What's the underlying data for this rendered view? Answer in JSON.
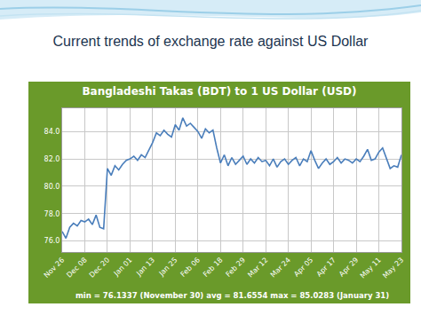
{
  "slide": {
    "title": "Current trends of exchange rate against US Dollar"
  },
  "chart_data": {
    "type": "line",
    "title": "Bangladeshi Takas (BDT) to 1 US Dollar (USD)",
    "annotations": [
      "min = 76.1337 (November 30) avg = 81.6554 max = 85.0283 (January 31)"
    ],
    "categories": [
      "Nov 26",
      null,
      null,
      null,
      null,
      null,
      "Dec 08",
      null,
      null,
      null,
      null,
      null,
      "Dec 20",
      null,
      null,
      null,
      null,
      null,
      "Jan 01",
      null,
      null,
      null,
      null,
      null,
      "Jan 13",
      null,
      null,
      null,
      null,
      null,
      "Jan 25",
      null,
      null,
      null,
      null,
      null,
      "Feb 06",
      null,
      null,
      null,
      null,
      null,
      "Feb 18",
      null,
      null,
      null,
      null,
      null,
      "Feb 29",
      null,
      null,
      null,
      null,
      null,
      "Mar 12",
      null,
      null,
      null,
      null,
      null,
      "Mar 24",
      null,
      null,
      null,
      null,
      null,
      "Apr 05",
      null,
      null,
      null,
      null,
      null,
      "Apr 17",
      null,
      null,
      null,
      null,
      null,
      "Apr 29",
      null,
      null,
      null,
      null,
      null,
      "May 11",
      null,
      null,
      null,
      null,
      null,
      "May 23"
    ],
    "values": [
      76.7,
      76.2,
      77.0,
      77.3,
      77.1,
      77.5,
      77.4,
      77.6,
      77.2,
      77.9,
      77.0,
      76.9,
      81.3,
      80.8,
      81.5,
      81.2,
      81.6,
      81.9,
      82.0,
      82.2,
      81.9,
      82.3,
      82.1,
      82.6,
      83.2,
      83.9,
      83.7,
      84.1,
      83.8,
      83.6,
      84.5,
      84.1,
      85.0,
      84.4,
      84.6,
      84.3,
      84.0,
      83.5,
      84.2,
      83.9,
      84.1,
      82.8,
      81.7,
      82.3,
      81.5,
      82.1,
      81.6,
      81.9,
      82.2,
      81.6,
      82.0,
      81.7,
      82.1,
      81.8,
      81.9,
      81.5,
      82.0,
      81.4,
      81.8,
      82.0,
      81.6,
      81.9,
      82.1,
      81.5,
      82.0,
      81.8,
      82.6,
      81.9,
      81.3,
      81.7,
      82.0,
      81.6,
      81.8,
      82.1,
      81.7,
      82.0,
      81.9,
      81.7,
      82.0,
      81.8,
      82.2,
      82.7,
      81.9,
      82.0,
      82.5,
      82.8,
      82.0,
      81.3,
      81.5,
      81.4,
      82.3
    ],
    "color": "#4a7ebb",
    "ylim": [
      75.2,
      85.7
    ],
    "yticks": [
      {
        "value": 76,
        "label": "76.0"
      },
      {
        "value": 78,
        "label": "78.0"
      },
      {
        "value": 80,
        "label": "80.0"
      },
      {
        "value": 82,
        "label": "82.0"
      },
      {
        "value": 84,
        "label": "84.0"
      }
    ],
    "grid": true
  }
}
